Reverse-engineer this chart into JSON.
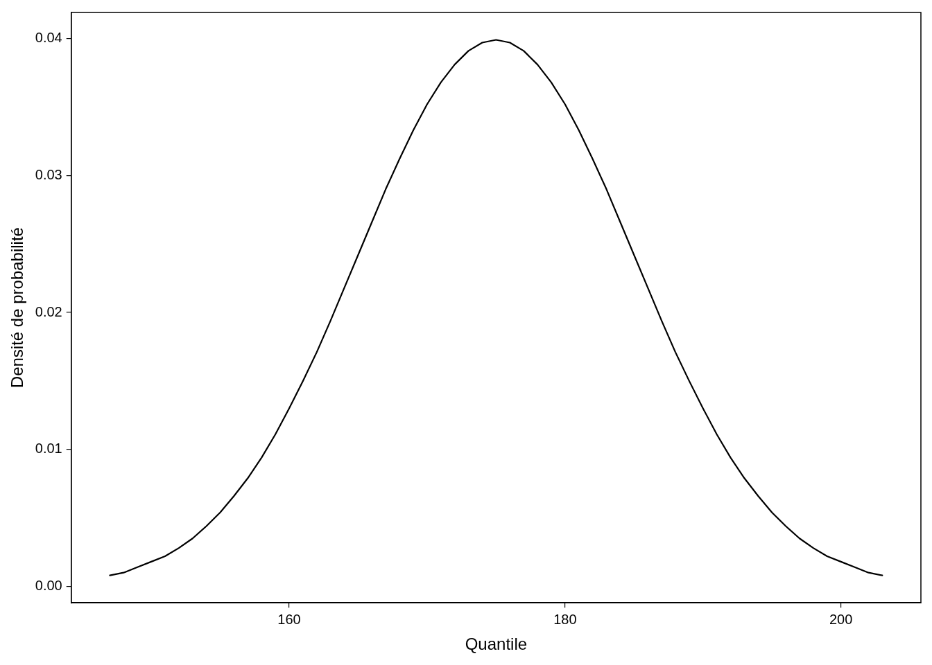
{
  "chart_data": {
    "type": "line",
    "xlabel": "Quantile",
    "ylabel": "Densité de probabilité",
    "xlim": [
      144.2,
      205.8
    ],
    "ylim": [
      -0.0012,
      0.0419
    ],
    "xticks": [
      160,
      180,
      200
    ],
    "yticks": [
      {
        "value": 0,
        "label": "0.00"
      },
      {
        "value": 0.01,
        "label": "0.01"
      },
      {
        "value": 0.02,
        "label": "0.02"
      },
      {
        "value": 0.03,
        "label": "0.03"
      },
      {
        "value": 0.04,
        "label": "0.04"
      }
    ],
    "grid": false,
    "legend": false,
    "marker": "none",
    "line_style": "solid",
    "series": [
      {
        "color": "#000000",
        "x": [
          147,
          148,
          149,
          150,
          151,
          152,
          153,
          154,
          155,
          156,
          157,
          158,
          159,
          160,
          161,
          162,
          163,
          164,
          165,
          166,
          167,
          168,
          169,
          170,
          171,
          172,
          173,
          174,
          175,
          176,
          177,
          178,
          179,
          180,
          181,
          182,
          183,
          184,
          185,
          186,
          187,
          188,
          189,
          190,
          191,
          192,
          193,
          194,
          195,
          196,
          197,
          198,
          199,
          200,
          201,
          202,
          203
        ],
        "values": [
          0.0008,
          0.001,
          0.0014,
          0.0018,
          0.0022,
          0.0028,
          0.0035,
          0.0044,
          0.0054,
          0.0066,
          0.0079,
          0.0094,
          0.0111,
          0.013,
          0.015,
          0.0171,
          0.0194,
          0.0218,
          0.0242,
          0.0266,
          0.029,
          0.0312,
          0.0333,
          0.0352,
          0.0368,
          0.0381,
          0.0391,
          0.0397,
          0.0399,
          0.0397,
          0.0391,
          0.0381,
          0.0368,
          0.0352,
          0.0333,
          0.0312,
          0.029,
          0.0266,
          0.0242,
          0.0218,
          0.0194,
          0.0171,
          0.015,
          0.013,
          0.0111,
          0.0094,
          0.0079,
          0.0066,
          0.0054,
          0.0044,
          0.0035,
          0.0028,
          0.0022,
          0.0018,
          0.0014,
          0.001,
          0.0008
        ]
      }
    ]
  }
}
